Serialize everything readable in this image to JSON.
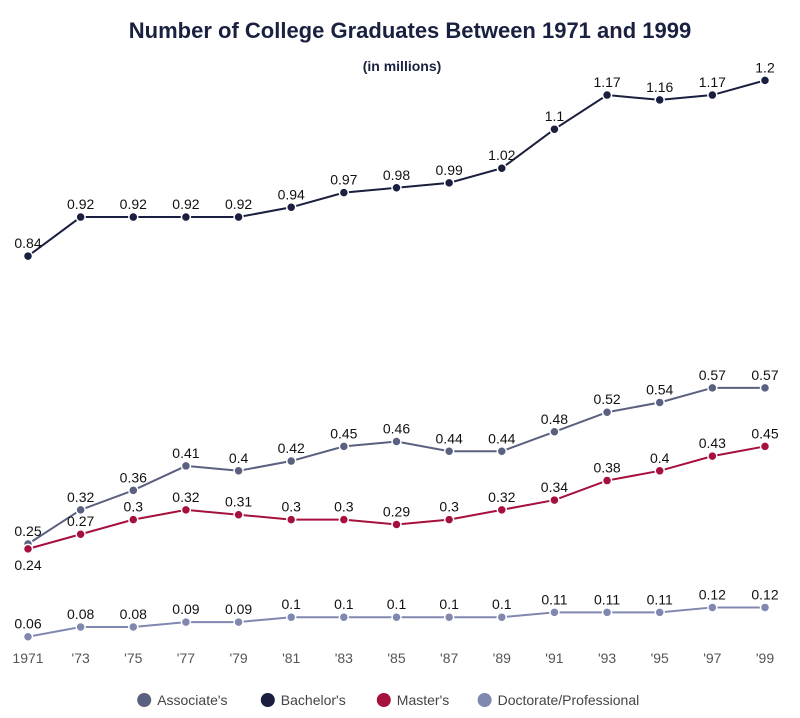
{
  "chart_data": {
    "type": "line",
    "title": "Number of College Graduates Between 1971 and 1999",
    "subtitle": "(in millions)",
    "xlabel": "",
    "ylabel": "",
    "categories": [
      "1971",
      "'73",
      "'75",
      "'77",
      "'79",
      "'81",
      "'83",
      "'85",
      "'87",
      "'89",
      "'91",
      "'93",
      "'95",
      "'97",
      "'99"
    ],
    "ylim": [
      0,
      1.2
    ],
    "grid": false,
    "legend": "bottom",
    "series": [
      {
        "name": "Associate's",
        "color": "#5a6080",
        "values": [
          0.25,
          0.32,
          0.36,
          0.41,
          0.4,
          0.42,
          0.45,
          0.46,
          0.44,
          0.44,
          0.48,
          0.52,
          0.54,
          0.57,
          0.57
        ]
      },
      {
        "name": "Bachelor's",
        "color": "#1a1f3f",
        "values": [
          0.84,
          0.92,
          0.92,
          0.92,
          0.92,
          0.94,
          0.97,
          0.98,
          0.99,
          1.02,
          1.1,
          1.17,
          1.16,
          1.17,
          1.2
        ]
      },
      {
        "name": "Master's",
        "color": "#a5103c",
        "values": [
          0.24,
          0.27,
          0.3,
          0.32,
          0.31,
          0.3,
          0.3,
          0.29,
          0.3,
          0.32,
          0.34,
          0.38,
          0.4,
          0.43,
          0.45
        ]
      },
      {
        "name": "Doctorate/Professional",
        "color": "#8088b0",
        "values": [
          0.06,
          0.08,
          0.08,
          0.09,
          0.09,
          0.1,
          0.1,
          0.1,
          0.1,
          0.1,
          0.11,
          0.11,
          0.11,
          0.12,
          0.12
        ]
      }
    ]
  }
}
